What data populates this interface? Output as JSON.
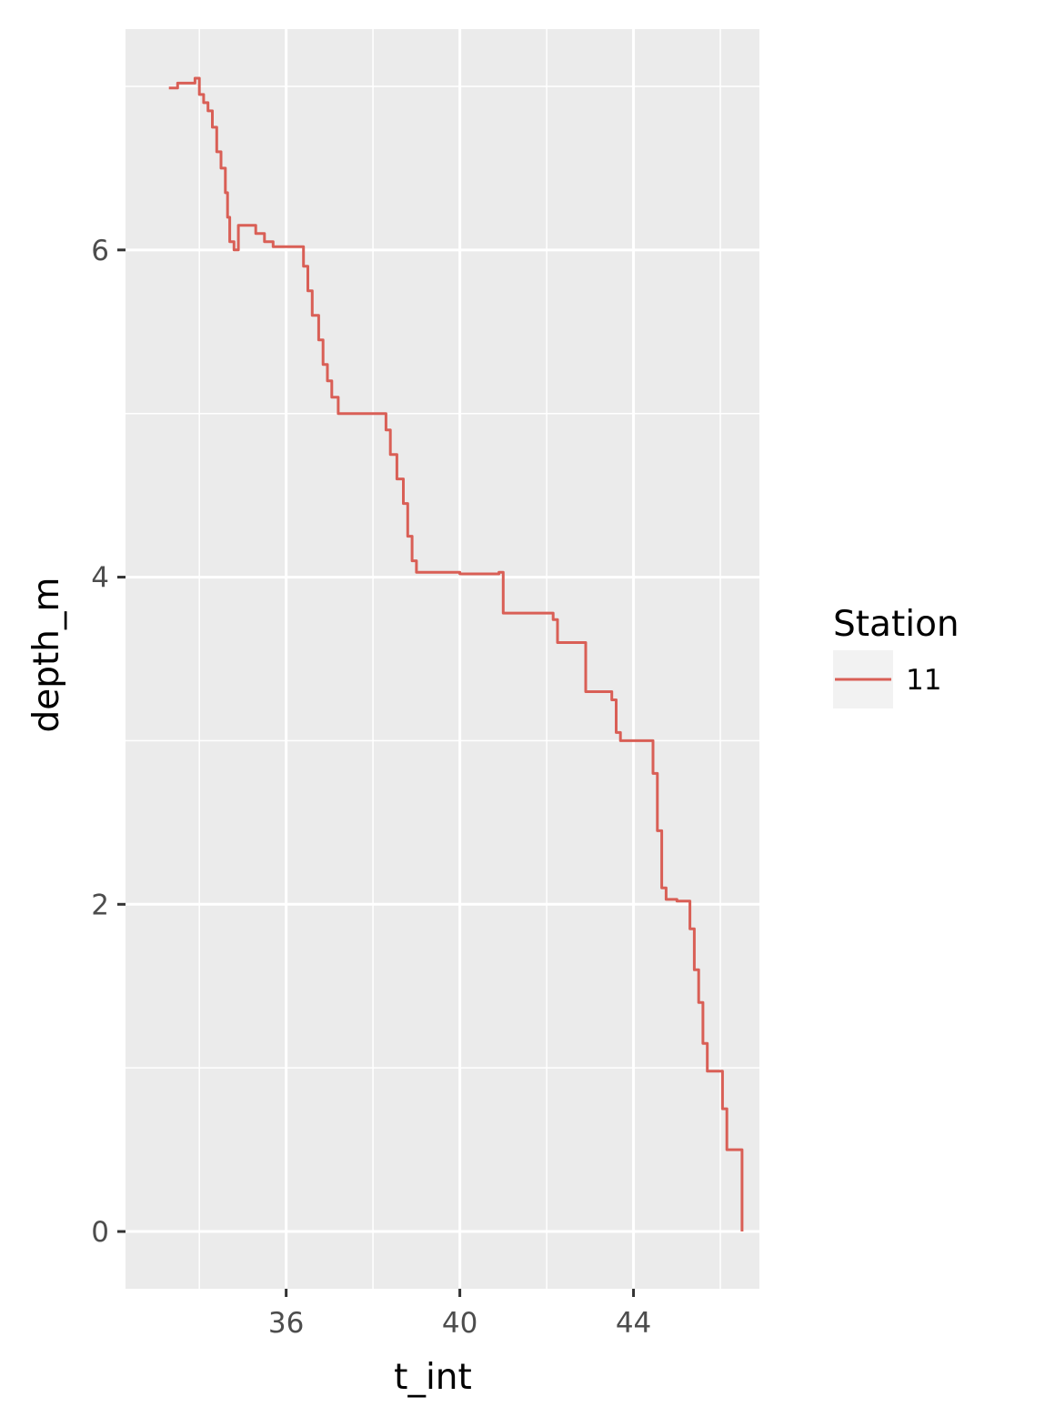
{
  "chart_data": {
    "type": "line",
    "title": "",
    "xlabel": "t_int",
    "ylabel": "depth_m",
    "x_ticks": [
      36,
      40,
      44
    ],
    "x_tick_labels": [
      "36",
      "40",
      "44"
    ],
    "y_ticks": [
      0,
      2,
      4,
      6
    ],
    "y_tick_labels": [
      "0",
      "2",
      "4",
      "6"
    ],
    "xlim": [
      32.3,
      46.9
    ],
    "ylim": [
      7.35,
      -0.35
    ],
    "y_reversed": true,
    "grid": true,
    "legend": {
      "title": "Station",
      "position": "right"
    },
    "series": [
      {
        "name": "11",
        "color": "#d95f56",
        "step": true,
        "points": [
          [
            33.3,
            6.99
          ],
          [
            33.5,
            7.02
          ],
          [
            33.8,
            7.02
          ],
          [
            33.9,
            7.05
          ],
          [
            34.0,
            6.95
          ],
          [
            34.1,
            6.9
          ],
          [
            34.2,
            6.85
          ],
          [
            34.3,
            6.75
          ],
          [
            34.4,
            6.6
          ],
          [
            34.5,
            6.5
          ],
          [
            34.6,
            6.35
          ],
          [
            34.65,
            6.2
          ],
          [
            34.7,
            6.05
          ],
          [
            34.8,
            6.0
          ],
          [
            34.9,
            6.15
          ],
          [
            35.0,
            6.15
          ],
          [
            35.2,
            6.15
          ],
          [
            35.3,
            6.1
          ],
          [
            35.5,
            6.05
          ],
          [
            35.7,
            6.02
          ],
          [
            36.0,
            6.02
          ],
          [
            36.3,
            6.02
          ],
          [
            36.4,
            5.9
          ],
          [
            36.5,
            5.75
          ],
          [
            36.6,
            5.6
          ],
          [
            36.75,
            5.45
          ],
          [
            36.85,
            5.3
          ],
          [
            36.95,
            5.2
          ],
          [
            37.05,
            5.1
          ],
          [
            37.2,
            5.0
          ],
          [
            37.5,
            5.0
          ],
          [
            38.0,
            5.0
          ],
          [
            38.2,
            5.0
          ],
          [
            38.3,
            4.9
          ],
          [
            38.4,
            4.75
          ],
          [
            38.55,
            4.6
          ],
          [
            38.7,
            4.45
          ],
          [
            38.8,
            4.25
          ],
          [
            38.9,
            4.1
          ],
          [
            39.0,
            4.03
          ],
          [
            39.5,
            4.03
          ],
          [
            40.0,
            4.02
          ],
          [
            40.5,
            4.02
          ],
          [
            40.9,
            4.03
          ],
          [
            41.0,
            3.78
          ],
          [
            41.5,
            3.78
          ],
          [
            42.0,
            3.78
          ],
          [
            42.15,
            3.74
          ],
          [
            42.25,
            3.6
          ],
          [
            42.5,
            3.6
          ],
          [
            42.8,
            3.6
          ],
          [
            42.9,
            3.3
          ],
          [
            43.2,
            3.3
          ],
          [
            43.5,
            3.25
          ],
          [
            43.6,
            3.05
          ],
          [
            43.7,
            3.0
          ],
          [
            44.0,
            3.0
          ],
          [
            44.3,
            3.0
          ],
          [
            44.45,
            2.8
          ],
          [
            44.55,
            2.45
          ],
          [
            44.65,
            2.1
          ],
          [
            44.75,
            2.03
          ],
          [
            45.0,
            2.02
          ],
          [
            45.25,
            2.02
          ],
          [
            45.3,
            1.85
          ],
          [
            45.4,
            1.6
          ],
          [
            45.5,
            1.4
          ],
          [
            45.6,
            1.15
          ],
          [
            45.7,
            0.98
          ],
          [
            45.9,
            0.98
          ],
          [
            46.0,
            0.98
          ],
          [
            46.05,
            0.75
          ],
          [
            46.15,
            0.5
          ],
          [
            46.3,
            0.5
          ],
          [
            46.45,
            0.5
          ],
          [
            46.5,
            0.0
          ]
        ]
      }
    ]
  }
}
